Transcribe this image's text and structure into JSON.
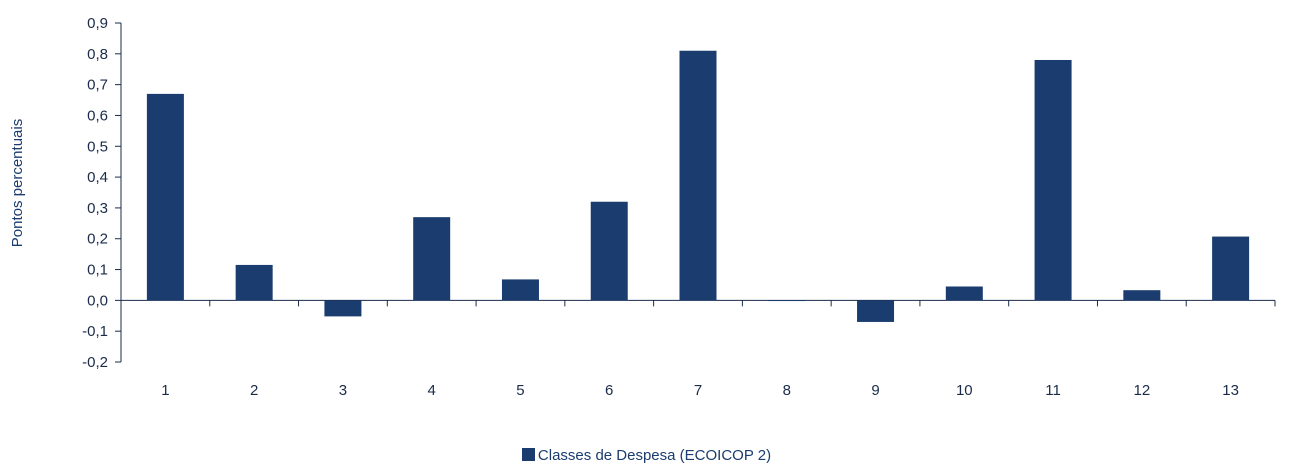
{
  "chart_data": {
    "type": "bar",
    "categories": [
      "1",
      "2",
      "3",
      "4",
      "5",
      "6",
      "7",
      "8",
      "9",
      "10",
      "11",
      "12",
      "13"
    ],
    "series": [
      {
        "name": "Classes de Despesa (ECOICOP 2)",
        "color": "#1a3c6e",
        "values": [
          0.67,
          0.115,
          -0.052,
          0.27,
          0.068,
          0.32,
          0.81,
          0.001,
          -0.07,
          0.045,
          0.78,
          0.033,
          0.207
        ]
      }
    ],
    "title": "",
    "xlabel": "",
    "ylabel": "Pontos percentuais",
    "ylim": [
      -0.2,
      0.9
    ],
    "yticks": [
      "-0,2",
      "-0,1",
      "0,0",
      "0,1",
      "0,2",
      "0,3",
      "0,4",
      "0,5",
      "0,6",
      "0,7",
      "0,8",
      "0,9"
    ],
    "grid": false,
    "legend_position": "bottom"
  }
}
